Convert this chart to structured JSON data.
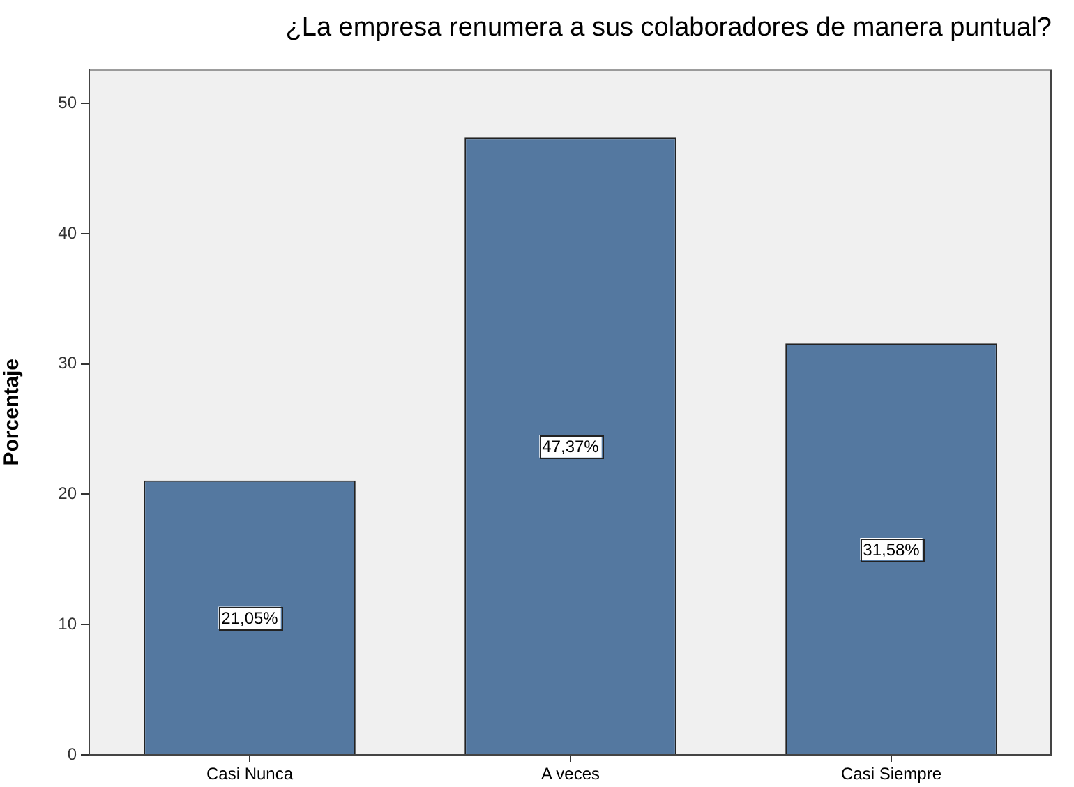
{
  "chart_data": {
    "type": "bar",
    "title": "¿La empresa renumera a sus colaboradores de manera puntual?",
    "ylabel": "Porcentaje",
    "categories": [
      "Casi Nunca",
      "A veces",
      "Casi Siempre"
    ],
    "values": [
      21.05,
      47.37,
      31.58
    ],
    "color": "#5478a0",
    "value_labels": [
      "21,05%",
      "47,37%",
      "31,58%"
    ],
    "ylim": [
      0,
      52.6
    ],
    "yticks": [
      0,
      10,
      20,
      30,
      40,
      50
    ]
  }
}
